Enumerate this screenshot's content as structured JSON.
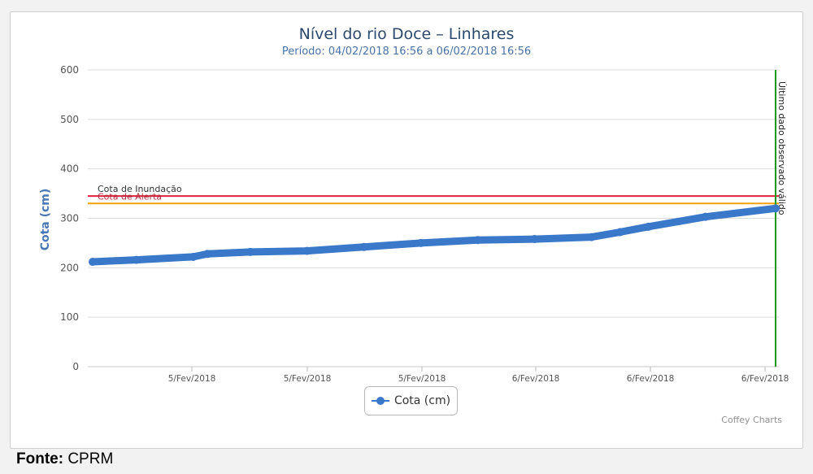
{
  "chart_data": {
    "type": "line",
    "title": "Nível do rio Doce – Linhares",
    "subtitle": "Período: 04/02/2018 16:56 a 06/02/2018 16:56",
    "xlabel": "",
    "ylabel": "Cota (cm)",
    "ylim": [
      0,
      600
    ],
    "yticks": [
      0,
      100,
      200,
      300,
      400,
      500,
      600
    ],
    "xtick_labels": [
      "5/Fev/2018",
      "5/Fev/2018",
      "5/Fev/2018",
      "6/Fev/2018",
      "6/Fev/2018",
      "6/Fev/2018"
    ],
    "grid": true,
    "legend_position": "bottom-center",
    "series": [
      {
        "name": "Cota (cm)",
        "color": "#3a78c9",
        "x": [
          "04/02/2018 16:56",
          "04/02/2018 20:00",
          "05/02/2018 00:00",
          "05/02/2018 01:00",
          "05/02/2018 04:00",
          "05/02/2018 08:00",
          "05/02/2018 12:00",
          "05/02/2018 16:00",
          "05/02/2018 20:00",
          "06/02/2018 00:00",
          "06/02/2018 04:00",
          "06/02/2018 06:00",
          "06/02/2018 08:00",
          "06/02/2018 12:00",
          "06/02/2018 16:56"
        ],
        "values": [
          212,
          216,
          222,
          228,
          232,
          234,
          242,
          250,
          256,
          258,
          262,
          272,
          283,
          303,
          320
        ]
      }
    ],
    "reference_lines": [
      {
        "label": "Cota de Inundação",
        "value": 345,
        "color": "#e0213a"
      },
      {
        "label": "Cota de Alerta",
        "value": 330,
        "color": "#f2a20c"
      }
    ],
    "vertical_marker": {
      "label": "Último dado observado válido",
      "x": "06/02/2018 16:56",
      "color": "#1f9a1f"
    }
  },
  "credits": "Coffey Charts",
  "source": {
    "label": "Fonte:",
    "value": "CPRM"
  }
}
